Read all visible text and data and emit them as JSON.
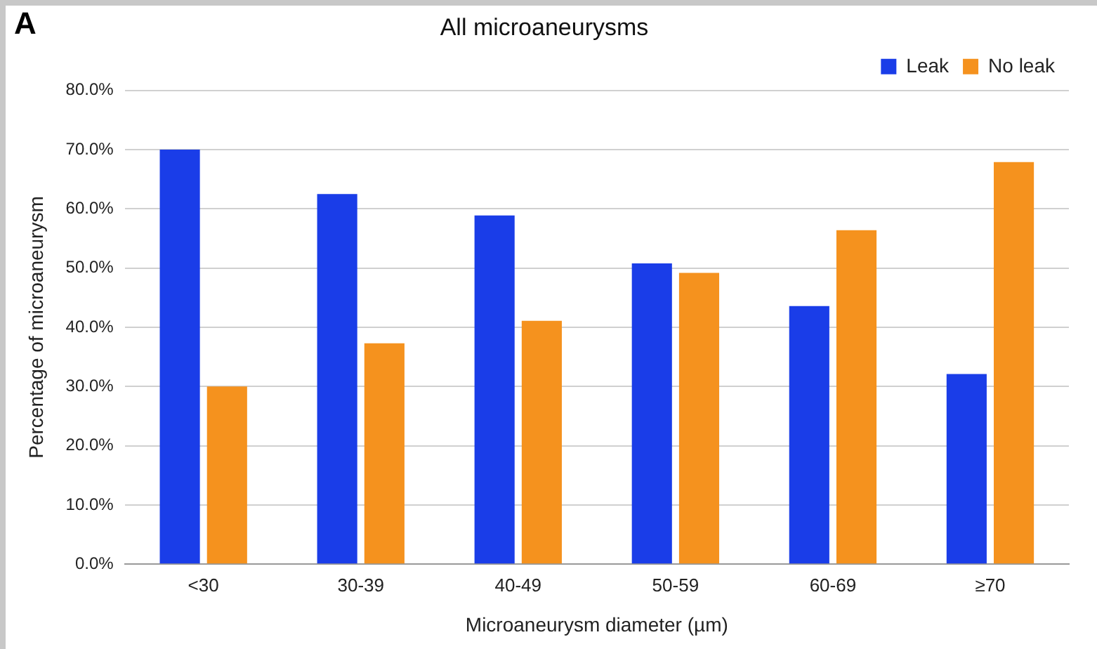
{
  "chart_data": {
    "type": "bar",
    "title": "All microaneurysms",
    "xlabel": "Microaneurysm diameter (µm)",
    "ylabel": "Percentage of microaneurysm",
    "annotations": [
      "A"
    ],
    "categories": [
      "<30",
      "30-39",
      "40-49",
      "50-59",
      "60-69",
      "≥70"
    ],
    "series": [
      {
        "name": "Leak",
        "color": "#1a3de8",
        "values": [
          70.0,
          62.5,
          58.9,
          50.8,
          43.6,
          32.1
        ]
      },
      {
        "name": "No leak",
        "color": "#f5921e",
        "values": [
          30.0,
          37.3,
          41.1,
          49.2,
          56.4,
          67.9
        ]
      }
    ],
    "ylim": [
      0,
      80
    ],
    "yticks": [
      {
        "value": 0,
        "label": "0.0%"
      },
      {
        "value": 10,
        "label": "10.0%"
      },
      {
        "value": 20,
        "label": "20.0%"
      },
      {
        "value": 30,
        "label": "30.0%"
      },
      {
        "value": 40,
        "label": "40.0%"
      },
      {
        "value": 50,
        "label": "50.0%"
      },
      {
        "value": 60,
        "label": "60.0%"
      },
      {
        "value": 70,
        "label": "70.0%"
      },
      {
        "value": 80,
        "label": "80.0%"
      }
    ],
    "grid": "y",
    "legend": "top right"
  }
}
